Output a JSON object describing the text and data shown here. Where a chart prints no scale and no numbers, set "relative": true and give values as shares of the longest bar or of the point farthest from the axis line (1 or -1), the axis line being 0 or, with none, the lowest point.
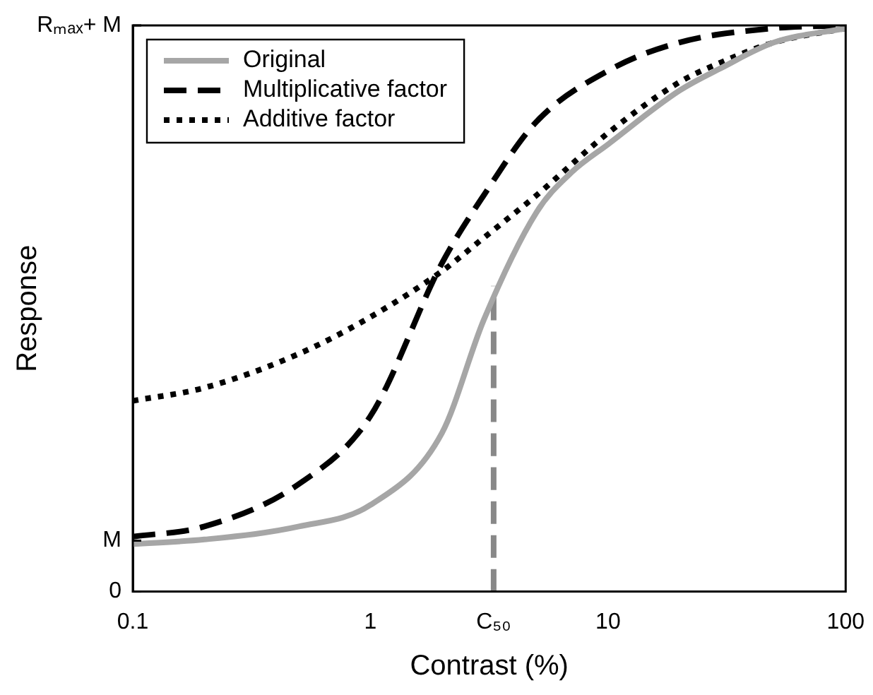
{
  "chart_data": {
    "type": "line",
    "xlabel": "Contrast (%)",
    "ylabel": "Response",
    "relative": true,
    "log": "x",
    "xlim": [
      0.1,
      100
    ],
    "xticks": [
      0.1,
      1,
      {
        "value": 3.3,
        "label": "C₅₀"
      },
      10,
      100
    ],
    "grid": false,
    "legend": "top left",
    "marker": "none",
    "ref_lines": [
      {
        "axis": "y",
        "value": 0,
        "label": "0"
      },
      {
        "axis": "y",
        "value": 0.09,
        "label": "M"
      },
      {
        "axis": "y",
        "value": 1,
        "label": "Rₘₐₓ+ M"
      }
    ],
    "series": [
      {
        "name": "Original",
        "color": "#a6a6a6",
        "line_style": "solid",
        "x": [
          0.1,
          0.2,
          0.5,
          1,
          2,
          3,
          5,
          7,
          10,
          20,
          30,
          50,
          100
        ],
        "values": [
          0.084,
          0.092,
          0.115,
          0.153,
          0.28,
          0.48,
          0.67,
          0.74,
          0.79,
          0.885,
          0.925,
          0.97,
          0.995
        ]
      },
      {
        "name": "Multiplicative factor",
        "color": "#000000",
        "line_style": "dashed",
        "x": [
          0.1,
          0.2,
          0.5,
          1,
          2,
          3,
          5,
          10,
          20,
          50,
          100
        ],
        "values": [
          0.097,
          0.115,
          0.19,
          0.31,
          0.58,
          0.7,
          0.83,
          0.92,
          0.97,
          0.995,
          1
        ]
      },
      {
        "name": "Additive factor",
        "color": "#000000",
        "line_style": "dotted",
        "x": [
          0.1,
          0.2,
          0.5,
          1,
          2,
          3,
          5,
          10,
          20,
          30,
          50,
          100
        ],
        "values": [
          0.337,
          0.36,
          0.42,
          0.485,
          0.566,
          0.625,
          0.7,
          0.81,
          0.9,
          0.935,
          0.97,
          0.995
        ]
      },
      {
        "color": "#888888",
        "line_style": "dashed",
        "x": [
          3.3,
          3.3
        ],
        "values": [
          0,
          0.54
        ]
      }
    ]
  }
}
